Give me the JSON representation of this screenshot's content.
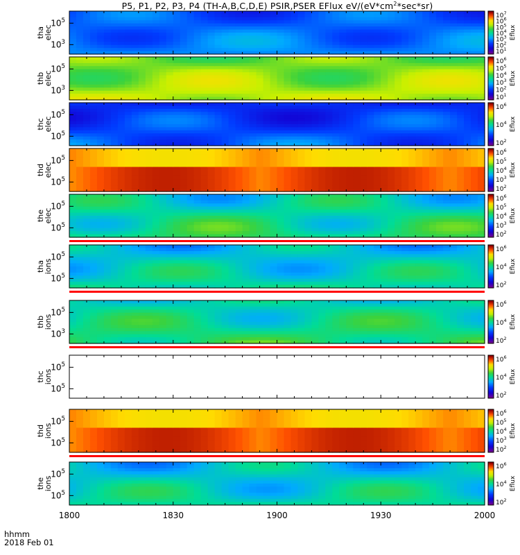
{
  "title_prefix": "P5, P1, P2, P3, P4 (TH-A,B,C,D,E) PSIR,PSER EFlux eV/(eV*cm",
  "title_sup": "2",
  "title_suffix": "*sec*sr)",
  "footer": {
    "time_label": "hhmm",
    "date_label": "2018 Feb 01"
  },
  "chart_data": {
    "type": "heatmap",
    "title": "P5, P1, P2, P3, P4 (TH-A,B,C,D,E) PSIR,PSER EFlux eV/(eV*cm2*sec*sr)",
    "x_ticks": [
      "1800",
      "1830",
      "1900",
      "1930",
      "2000"
    ],
    "x_range_minutes": [
      0,
      120
    ],
    "colorbar_title": "Eflux",
    "panels": [
      {
        "probe": "tha",
        "species": "elec",
        "yticks": [
          "10^5",
          "10^3"
        ],
        "cb_ticks": [
          "10^7",
          "10^6",
          "10^5",
          "10^4",
          "10^3",
          "10^2",
          "10^1"
        ],
        "cb_range": [
          1,
          7.5
        ],
        "level": 3.0,
        "ions_strip": false
      },
      {
        "probe": "thb",
        "species": "elec",
        "yticks": [
          "10^5",
          "10^3"
        ],
        "cb_ticks": [
          "10^6",
          "10^5",
          "10^4",
          "10^3",
          "10^2",
          "10^1"
        ],
        "cb_range": [
          0.5,
          6.5
        ],
        "level": 4.5,
        "ions_strip": false
      },
      {
        "probe": "thc",
        "species": "elec",
        "yticks": [
          "10^5",
          "10^5"
        ],
        "cb_ticks": [
          "10^6",
          "10^4",
          "10^2"
        ],
        "cb_range": [
          1,
          7
        ],
        "level": 2.5,
        "ions_strip": false
      },
      {
        "probe": "thd",
        "species": "elec",
        "yticks": [
          "10^5",
          "10^5"
        ],
        "cb_ticks": [
          "10^6",
          "10^5",
          "10^4",
          "10^3",
          "10^2"
        ],
        "cb_range": [
          1.5,
          6.5
        ],
        "level": 5.8,
        "ions_strip": false
      },
      {
        "probe": "the",
        "species": "elec",
        "yticks": [
          "10^5",
          "10^5"
        ],
        "cb_ticks": [
          "10^6",
          "10^5",
          "10^4",
          "10^3",
          "10^2"
        ],
        "cb_range": [
          1.5,
          6.5
        ],
        "level": 4.0,
        "ions_strip": true
      },
      {
        "probe": "tha",
        "species": "ions",
        "yticks": [
          "10^5",
          "10^5"
        ],
        "cb_ticks": [
          "10^6",
          "10^4",
          "10^2"
        ],
        "cb_range": [
          1.5,
          7
        ],
        "level": 4.0,
        "ions_strip": true
      },
      {
        "probe": "thb",
        "species": "ions",
        "yticks": [
          "10^5",
          "10^3"
        ],
        "cb_ticks": [
          "10^6",
          "10^4",
          "10^2"
        ],
        "cb_range": [
          1.5,
          7
        ],
        "level": 4.3,
        "ions_strip": true
      },
      {
        "probe": "thc",
        "species": "ions",
        "yticks": [
          "10^5",
          "10^5"
        ],
        "cb_ticks": [
          "10^6",
          "10^4",
          "10^2"
        ],
        "cb_range": [
          1.5,
          7
        ],
        "level": null,
        "ions_strip": false
      },
      {
        "probe": "thd",
        "species": "ions",
        "yticks": [
          "10^5",
          "10^5"
        ],
        "cb_ticks": [
          "10^6",
          "10^5",
          "10^4",
          "10^3",
          "10^2"
        ],
        "cb_range": [
          1.5,
          6.5
        ],
        "level": 5.8,
        "ions_strip": true
      },
      {
        "probe": "the",
        "species": "ions",
        "yticks": [
          "10^5",
          "10^5"
        ],
        "cb_ticks": [
          "10^6",
          "10^4",
          "10^2"
        ],
        "cb_range": [
          1.5,
          7
        ],
        "level": 4.0,
        "ions_strip": false
      }
    ]
  }
}
